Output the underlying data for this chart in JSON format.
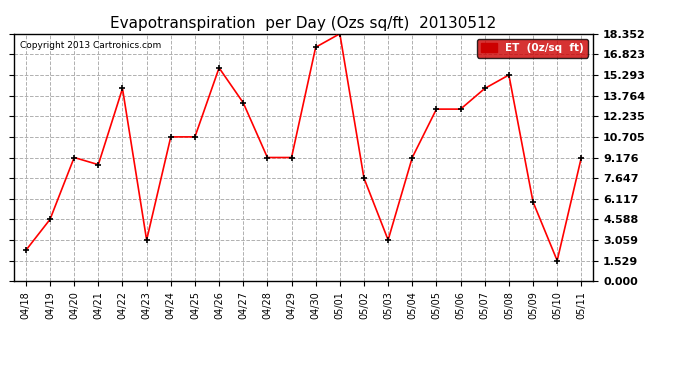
{
  "title": "Evapotranspiration  per Day (Ozs sq/ft)  20130512",
  "copyright": "Copyright 2013 Cartronics.com",
  "legend_label": "ET  (0z/sq  ft)",
  "x_labels": [
    "04/18",
    "04/19",
    "04/20",
    "04/21",
    "04/22",
    "04/23",
    "04/24",
    "04/25",
    "04/26",
    "04/27",
    "04/28",
    "04/29",
    "04/30",
    "05/01",
    "05/02",
    "05/03",
    "05/04",
    "05/05",
    "05/06",
    "05/07",
    "05/08",
    "05/09",
    "05/10",
    "05/11"
  ],
  "y_values": [
    2.294,
    4.588,
    9.176,
    8.647,
    14.293,
    3.059,
    10.705,
    10.705,
    15.823,
    13.235,
    9.176,
    9.176,
    17.352,
    18.352,
    7.647,
    3.059,
    9.176,
    12.764,
    12.764,
    14.293,
    15.293,
    5.882,
    1.529,
    9.176
  ],
  "y_ticks": [
    0.0,
    1.529,
    3.059,
    4.588,
    6.117,
    7.647,
    9.176,
    10.705,
    12.235,
    13.764,
    15.293,
    16.823,
    18.352
  ],
  "line_color": "red",
  "marker_color": "black",
  "bg_color": "#ffffff",
  "grid_color": "#b0b0b0",
  "title_fontsize": 11,
  "legend_bg": "#cc0000",
  "legend_text_color": "#ffffff",
  "ylim_max": 18.352,
  "ylabel_fontsize": 8,
  "xlabel_fontsize": 7
}
